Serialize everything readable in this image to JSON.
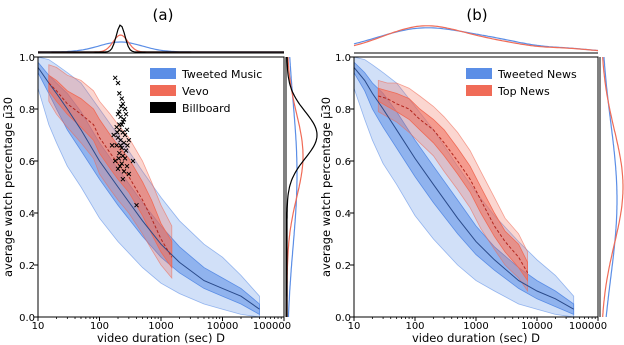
{
  "chart_data": [
    {
      "type": "line",
      "panel_label": "(a)",
      "xlabel": "video duration (sec) D",
      "ylabel": "average watch percentage μ̄30",
      "x_scale": "log",
      "xlim": [
        10,
        100000
      ],
      "ylim": [
        0.0,
        1.0
      ],
      "x_tick_labels": [
        "10",
        "100",
        "1000",
        "10000",
        "100000"
      ],
      "y_tick_labels": [
        "0.0",
        "0.2",
        "0.4",
        "0.6",
        "0.8",
        "1.0"
      ],
      "grid": false,
      "legend_position": "top-right",
      "series": [
        {
          "name": "Tweeted Music",
          "color": "#5b8ee6",
          "x": [
            10,
            15,
            20,
            30,
            50,
            100,
            200,
            500,
            1000,
            2000,
            5000,
            10000,
            20000,
            40000
          ],
          "median": [
            0.96,
            0.9,
            0.86,
            0.8,
            0.72,
            0.6,
            0.5,
            0.37,
            0.28,
            0.21,
            0.14,
            0.11,
            0.08,
            0.03
          ],
          "band_inner": [
            [
              0.94,
              0.98
            ],
            [
              0.86,
              0.93
            ],
            [
              0.8,
              0.9
            ],
            [
              0.72,
              0.86
            ],
            [
              0.64,
              0.79
            ],
            [
              0.53,
              0.67
            ],
            [
              0.43,
              0.57
            ],
            [
              0.31,
              0.44
            ],
            [
              0.23,
              0.35
            ],
            [
              0.17,
              0.27
            ],
            [
              0.11,
              0.19
            ],
            [
              0.08,
              0.15
            ],
            [
              0.05,
              0.11
            ],
            [
              0.01,
              0.05
            ]
          ],
          "band_outer": [
            [
              0.88,
              1.0
            ],
            [
              0.74,
              0.99
            ],
            [
              0.67,
              0.97
            ],
            [
              0.58,
              0.94
            ],
            [
              0.5,
              0.9
            ],
            [
              0.38,
              0.8
            ],
            [
              0.29,
              0.7
            ],
            [
              0.19,
              0.56
            ],
            [
              0.13,
              0.46
            ],
            [
              0.09,
              0.37
            ],
            [
              0.05,
              0.28
            ],
            [
              0.03,
              0.23
            ],
            [
              0.01,
              0.16
            ],
            [
              0.0,
              0.08
            ]
          ]
        },
        {
          "name": "Vevo",
          "color": "#f06b57",
          "x": [
            15,
            20,
            30,
            50,
            80,
            100,
            150,
            200,
            300,
            500,
            700,
            1000,
            1500
          ],
          "median": [
            0.9,
            0.87,
            0.82,
            0.78,
            0.74,
            0.69,
            0.63,
            0.59,
            0.54,
            0.45,
            0.38,
            0.3,
            0.23
          ],
          "band_inner": [
            [
              0.87,
              0.93
            ],
            [
              0.83,
              0.91
            ],
            [
              0.78,
              0.87
            ],
            [
              0.73,
              0.84
            ],
            [
              0.68,
              0.8
            ],
            [
              0.63,
              0.76
            ],
            [
              0.57,
              0.7
            ],
            [
              0.53,
              0.66
            ],
            [
              0.48,
              0.61
            ],
            [
              0.39,
              0.52
            ],
            [
              0.32,
              0.45
            ],
            [
              0.25,
              0.36
            ],
            [
              0.19,
              0.29
            ]
          ],
          "band_outer": [
            [
              0.83,
              0.97
            ],
            [
              0.78,
              0.96
            ],
            [
              0.73,
              0.93
            ],
            [
              0.67,
              0.91
            ],
            [
              0.61,
              0.87
            ],
            [
              0.55,
              0.83
            ],
            [
              0.49,
              0.78
            ],
            [
              0.45,
              0.74
            ],
            [
              0.4,
              0.69
            ],
            [
              0.32,
              0.6
            ],
            [
              0.26,
              0.52
            ],
            [
              0.2,
              0.43
            ],
            [
              0.15,
              0.35
            ]
          ]
        },
        {
          "name": "Billboard",
          "color": "#000000",
          "marker": "x",
          "points": [
            [
              180,
              0.92
            ],
            [
              200,
              0.9
            ],
            [
              210,
              0.86
            ],
            [
              230,
              0.84
            ],
            [
              240,
              0.82
            ],
            [
              260,
              0.8
            ],
            [
              210,
              0.79
            ],
            [
              200,
              0.78
            ],
            [
              220,
              0.77
            ],
            [
              250,
              0.76
            ],
            [
              270,
              0.78
            ],
            [
              230,
              0.74
            ],
            [
              190,
              0.73
            ],
            [
              210,
              0.72
            ],
            [
              240,
              0.71
            ],
            [
              260,
              0.7
            ],
            [
              280,
              0.72
            ],
            [
              200,
              0.69
            ],
            [
              220,
              0.68
            ],
            [
              250,
              0.67
            ],
            [
              300,
              0.68
            ],
            [
              190,
              0.66
            ],
            [
              230,
              0.65
            ],
            [
              270,
              0.64
            ],
            [
              210,
              0.63
            ],
            [
              240,
              0.62
            ],
            [
              260,
              0.61
            ],
            [
              180,
              0.6
            ],
            [
              230,
              0.59
            ],
            [
              280,
              0.58
            ],
            [
              200,
              0.57
            ],
            [
              250,
              0.56
            ],
            [
              300,
              0.55
            ],
            [
              240,
              0.53
            ],
            [
              220,
              0.66
            ],
            [
              210,
              0.74
            ],
            [
              195,
              0.71
            ],
            [
              285,
              0.66
            ],
            [
              350,
              0.6
            ],
            [
              400,
              0.43
            ],
            [
              160,
              0.66
            ],
            [
              240,
              0.75
            ],
            [
              170,
              0.7
            ],
            [
              205,
              0.61
            ],
            [
              215,
              0.58
            ],
            [
              225,
              0.81
            ]
          ]
        }
      ],
      "marginals": {
        "top": [
          {
            "series": "Billboard",
            "peak_x": 220
          },
          {
            "series": "Vevo",
            "peak_x": 220
          },
          {
            "series": "Tweeted Music",
            "peak_x": 220
          }
        ],
        "right": [
          {
            "series": "Billboard",
            "peak_y": 0.7
          },
          {
            "series": "Vevo",
            "peak_y": 0.62
          },
          {
            "series": "Tweeted Music",
            "peak_y": 0.55
          }
        ]
      }
    },
    {
      "type": "line",
      "panel_label": "(b)",
      "xlabel": "video duration (sec) D",
      "ylabel": "average watch percentage μ̄30",
      "x_scale": "log",
      "xlim": [
        10,
        100000
      ],
      "ylim": [
        0.0,
        1.0
      ],
      "x_tick_labels": [
        "10",
        "100",
        "1000",
        "10000",
        "100000"
      ],
      "y_tick_labels": [
        "0.0",
        "0.2",
        "0.4",
        "0.6",
        "0.8",
        "1.0"
      ],
      "grid": false,
      "legend_position": "top-right",
      "series": [
        {
          "name": "Tweeted News",
          "color": "#5b8ee6",
          "x": [
            10,
            15,
            20,
            30,
            50,
            100,
            200,
            500,
            1000,
            2000,
            5000,
            10000,
            20000,
            40000
          ],
          "median": [
            0.96,
            0.91,
            0.86,
            0.8,
            0.72,
            0.61,
            0.51,
            0.38,
            0.29,
            0.22,
            0.14,
            0.1,
            0.07,
            0.03
          ],
          "band_inner": [
            [
              0.94,
              0.98
            ],
            [
              0.87,
              0.94
            ],
            [
              0.8,
              0.9
            ],
            [
              0.73,
              0.86
            ],
            [
              0.65,
              0.79
            ],
            [
              0.54,
              0.68
            ],
            [
              0.44,
              0.58
            ],
            [
              0.32,
              0.45
            ],
            [
              0.24,
              0.35
            ],
            [
              0.18,
              0.27
            ],
            [
              0.11,
              0.19
            ],
            [
              0.07,
              0.14
            ],
            [
              0.04,
              0.1
            ],
            [
              0.01,
              0.05
            ]
          ],
          "band_outer": [
            [
              0.88,
              1.0
            ],
            [
              0.76,
              0.99
            ],
            [
              0.68,
              0.97
            ],
            [
              0.59,
              0.94
            ],
            [
              0.51,
              0.9
            ],
            [
              0.39,
              0.81
            ],
            [
              0.3,
              0.72
            ],
            [
              0.2,
              0.58
            ],
            [
              0.14,
              0.48
            ],
            [
              0.1,
              0.39
            ],
            [
              0.05,
              0.29
            ],
            [
              0.03,
              0.22
            ],
            [
              0.01,
              0.16
            ],
            [
              0.0,
              0.08
            ]
          ]
        },
        {
          "name": "Top News",
          "color": "#f06b57",
          "x": [
            25,
            35,
            50,
            80,
            120,
            200,
            300,
            500,
            800,
            1200,
            2000,
            3000,
            5000,
            7000
          ],
          "median": [
            0.85,
            0.84,
            0.82,
            0.8,
            0.76,
            0.72,
            0.67,
            0.6,
            0.53,
            0.45,
            0.35,
            0.29,
            0.23,
            0.17
          ],
          "band_inner": [
            [
              0.83,
              0.88
            ],
            [
              0.81,
              0.87
            ],
            [
              0.79,
              0.86
            ],
            [
              0.76,
              0.84
            ],
            [
              0.72,
              0.8
            ],
            [
              0.67,
              0.76
            ],
            [
              0.62,
              0.72
            ],
            [
              0.55,
              0.65
            ],
            [
              0.48,
              0.58
            ],
            [
              0.4,
              0.5
            ],
            [
              0.31,
              0.4
            ],
            [
              0.25,
              0.33
            ],
            [
              0.19,
              0.28
            ],
            [
              0.14,
              0.21
            ]
          ],
          "band_outer": [
            [
              0.79,
              0.91
            ],
            [
              0.77,
              0.9
            ],
            [
              0.75,
              0.9
            ],
            [
              0.71,
              0.88
            ],
            [
              0.67,
              0.85
            ],
            [
              0.62,
              0.81
            ],
            [
              0.56,
              0.77
            ],
            [
              0.49,
              0.71
            ],
            [
              0.42,
              0.64
            ],
            [
              0.34,
              0.56
            ],
            [
              0.26,
              0.46
            ],
            [
              0.2,
              0.38
            ],
            [
              0.15,
              0.32
            ],
            [
              0.1,
              0.25
            ]
          ]
        }
      ],
      "marginals": {
        "top": [
          {
            "series": "Top News",
            "peak_x": 150
          },
          {
            "series": "Tweeted News",
            "peak_x": 150
          }
        ],
        "right": [
          {
            "series": "Top News",
            "peak_y": 0.5
          },
          {
            "series": "Tweeted News",
            "peak_y": 0.45
          }
        ]
      }
    }
  ]
}
